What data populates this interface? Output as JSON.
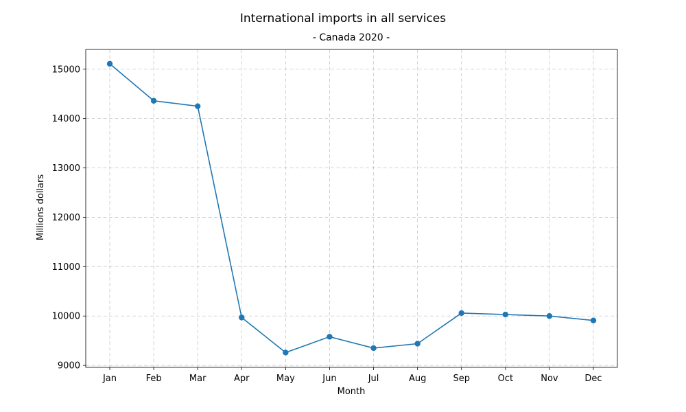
{
  "chart_data": {
    "type": "line",
    "title": "International imports in all services",
    "subtitle": "- Canada 2020 -",
    "xlabel": "Month",
    "ylabel": "Millions dollars",
    "categories": [
      "Jan",
      "Feb",
      "Mar",
      "Apr",
      "May",
      "Jun",
      "Jul",
      "Aug",
      "Sep",
      "Oct",
      "Nov",
      "Dec"
    ],
    "series": [
      {
        "values": [
          15110,
          14360,
          14250,
          9970,
          9260,
          9580,
          9350,
          9440,
          10060,
          10030,
          10000,
          9910
        ],
        "color": "#1f77b4"
      }
    ],
    "ylim": [
      8960,
      15400
    ],
    "yticks": [
      9000,
      10000,
      11000,
      12000,
      13000,
      14000,
      15000
    ],
    "grid": true,
    "marker": "circle"
  }
}
